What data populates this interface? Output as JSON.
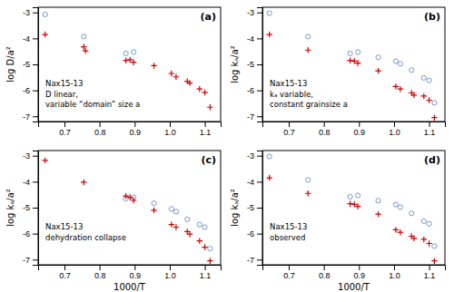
{
  "chart_data": [
    {
      "type": "scatter",
      "title": "(a)",
      "ylabel": "log D/a²",
      "annotations": [
        "Nax15-13",
        "D linear,",
        "variable “domain” size a"
      ],
      "xlim": [
        0.625,
        1.145
      ],
      "ylim": [
        -7.2,
        -2.8
      ],
      "xticks": [
        0.7,
        0.8,
        0.9,
        {
          "value": 1.0,
          "label": "1.0"
        },
        1.1
      ],
      "yticks": [
        -7,
        -6,
        -5,
        -4,
        -3
      ],
      "series": [
        {
          "marker": "circle-open",
          "color": "#7799cc",
          "x": [
            0.645,
            0.755,
            0.875,
            0.897
          ],
          "values": [
            -3.08,
            -3.93,
            -4.58,
            -4.53
          ]
        },
        {
          "marker": "plus",
          "color": "#cc0000",
          "x": [
            0.645,
            0.755,
            0.76,
            0.875,
            0.887,
            0.897,
            0.955,
            1.005,
            1.018,
            1.05,
            1.057,
            1.085,
            1.1,
            1.115
          ],
          "values": [
            -3.85,
            -4.32,
            -4.48,
            -4.85,
            -4.82,
            -4.92,
            -5.05,
            -5.35,
            -5.48,
            -5.65,
            -5.72,
            -5.95,
            -6.08,
            -6.65
          ]
        }
      ]
    },
    {
      "type": "scatter",
      "title": "(b)",
      "ylabel": "log kₐ/a²",
      "annotations": [
        "Nax15-13",
        "kₐ variable,",
        "constant grainsize a"
      ],
      "xlim": [
        0.625,
        1.145
      ],
      "ylim": [
        -7.2,
        -2.8
      ],
      "xticks": [
        0.7,
        0.8,
        0.9,
        {
          "value": 1.0,
          "label": "1.0"
        },
        1.1
      ],
      "yticks": [
        -7,
        -6,
        -5,
        -4,
        -3
      ],
      "series": [
        {
          "marker": "circle-open",
          "color": "#7799cc",
          "x": [
            0.645,
            0.755,
            0.875,
            0.897,
            0.955,
            1.005,
            1.018,
            1.05,
            1.085,
            1.1,
            1.115
          ],
          "values": [
            -3.03,
            -3.93,
            -4.58,
            -4.53,
            -4.73,
            -4.88,
            -4.98,
            -5.22,
            -5.52,
            -5.62,
            -6.48
          ]
        },
        {
          "marker": "plus",
          "color": "#cc0000",
          "x": [
            0.645,
            0.755,
            0.875,
            0.887,
            0.897,
            0.955,
            1.005,
            1.018,
            1.05,
            1.057,
            1.085,
            1.1,
            1.115
          ],
          "values": [
            -3.85,
            -4.45,
            -4.85,
            -4.87,
            -4.95,
            -5.25,
            -5.85,
            -5.95,
            -6.1,
            -6.18,
            -6.22,
            -6.38,
            -7.05
          ]
        }
      ]
    },
    {
      "type": "scatter",
      "title": "(c)",
      "ylabel": "log kₐ/a²",
      "xlabel": "1000/T",
      "annotations": [
        "Nax15-13",
        "dehydration collapse"
      ],
      "xlim": [
        0.625,
        1.145
      ],
      "ylim": [
        -7.2,
        -2.8
      ],
      "xticks": [
        0.7,
        0.8,
        0.9,
        {
          "value": 1.0,
          "label": "1.0"
        },
        1.1
      ],
      "yticks": [
        -7,
        -6,
        -5,
        -4,
        -3
      ],
      "series": [
        {
          "marker": "circle-open",
          "color": "#7799cc",
          "x": [
            0.875,
            0.897,
            0.955,
            1.005,
            1.018,
            1.05,
            1.085,
            1.1,
            1.115
          ],
          "values": [
            -4.65,
            -4.6,
            -4.83,
            -5.05,
            -5.15,
            -5.45,
            -5.65,
            -5.75,
            -6.58
          ]
        },
        {
          "marker": "plus",
          "color": "#cc0000",
          "x": [
            0.645,
            0.755,
            0.875,
            0.887,
            0.897,
            0.955,
            1.005,
            1.018,
            1.05,
            1.057,
            1.085,
            1.1,
            1.115
          ],
          "values": [
            -3.18,
            -4.02,
            -4.55,
            -4.6,
            -4.72,
            -5.1,
            -5.65,
            -5.75,
            -5.92,
            -6.02,
            -6.28,
            -6.52,
            -7.05
          ]
        }
      ]
    },
    {
      "type": "scatter",
      "title": "(d)",
      "ylabel": "log kₐ/a²",
      "xlabel": "1000/T",
      "annotations": [
        "Nax15-13",
        "observed"
      ],
      "xlim": [
        0.625,
        1.145
      ],
      "ylim": [
        -7.2,
        -2.8
      ],
      "xticks": [
        0.7,
        0.8,
        0.9,
        {
          "value": 1.0,
          "label": "1.0"
        },
        1.1
      ],
      "yticks": [
        -7,
        -6,
        -5,
        -4,
        -3
      ],
      "series": [
        {
          "marker": "circle-open",
          "color": "#7799cc",
          "x": [
            0.645,
            0.755,
            0.875,
            0.897,
            0.955,
            1.005,
            1.018,
            1.05,
            1.085,
            1.1,
            1.115
          ],
          "values": [
            -3.03,
            -3.93,
            -4.58,
            -4.53,
            -4.73,
            -4.88,
            -4.98,
            -5.22,
            -5.52,
            -5.62,
            -6.48
          ]
        },
        {
          "marker": "plus",
          "color": "#cc0000",
          "x": [
            0.645,
            0.755,
            0.875,
            0.887,
            0.897,
            0.955,
            1.005,
            1.018,
            1.05,
            1.057,
            1.085,
            1.1,
            1.115
          ],
          "values": [
            -3.85,
            -4.45,
            -4.85,
            -4.87,
            -4.95,
            -5.25,
            -5.85,
            -5.95,
            -6.1,
            -6.18,
            -6.22,
            -6.38,
            -7.05
          ]
        }
      ]
    }
  ]
}
